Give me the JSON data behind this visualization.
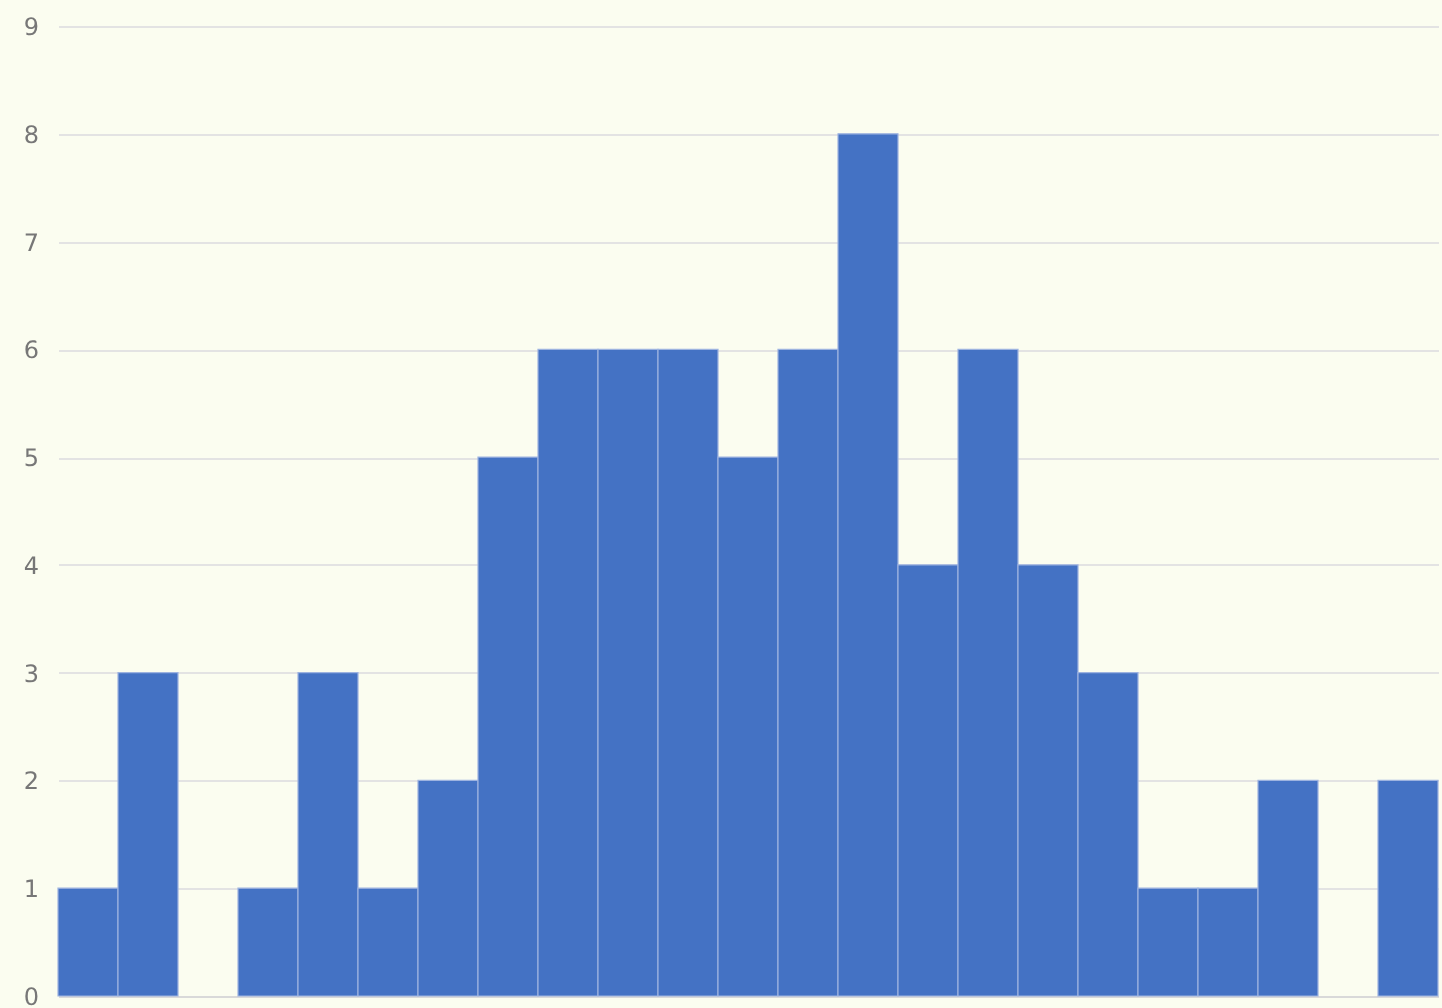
{
  "chart_data": {
    "type": "bar",
    "categories": [
      null,
      null,
      null,
      null,
      null,
      null,
      null,
      null,
      null,
      null,
      null,
      null,
      null,
      null,
      null,
      null,
      null,
      null,
      null,
      null,
      null,
      null,
      null
    ],
    "values": [
      1,
      3,
      0,
      1,
      3,
      1,
      2,
      5,
      6,
      6,
      6,
      5,
      6,
      8,
      4,
      6,
      4,
      3,
      1,
      1,
      2,
      0,
      2
    ],
    "color": "#4472c4",
    "ylim": [
      0,
      9
    ],
    "yticks": [
      0,
      1,
      2,
      3,
      4,
      5,
      6,
      7,
      8,
      9
    ],
    "grid": "y",
    "tick_labels": "y"
  }
}
